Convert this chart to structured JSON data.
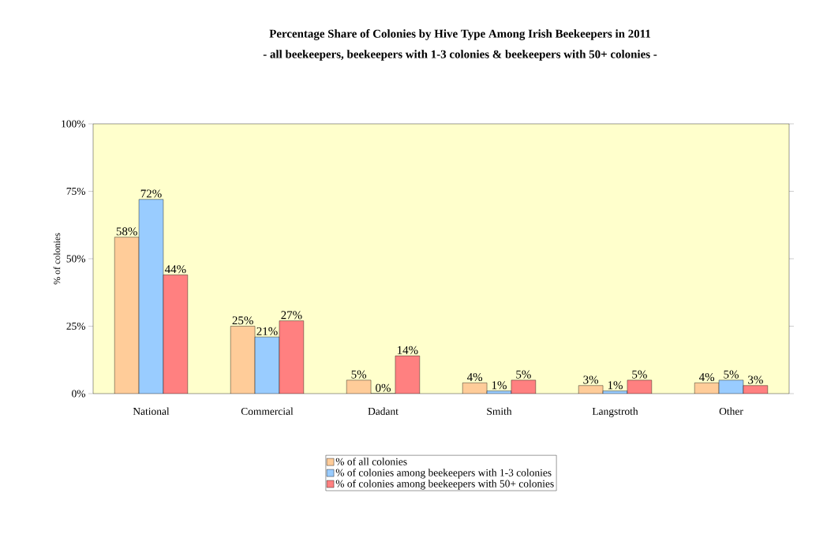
{
  "chart_data": {
    "type": "bar",
    "title": "Percentage Share of Colonies by Hive Type Among Irish Beekeepers in 2011",
    "subtitle": "- all beekeepers, beekeepers with 1-3 colonies & beekeepers with 50+ colonies -",
    "ylabel": "% of colonies",
    "categories": [
      "National",
      "Commercial",
      "Dadant",
      "Smith",
      "Langstroth",
      "Other"
    ],
    "series": [
      {
        "name": "% of all colonies",
        "color": "#ffcc99",
        "values": [
          58,
          25,
          5,
          4,
          3,
          4
        ],
        "value_labels": [
          "58%",
          "25%",
          "5%",
          "4%",
          "3%",
          "4%"
        ]
      },
      {
        "name": "% of colonies among beekeepers with 1-3 colonies",
        "color": "#99ccff",
        "values": [
          72,
          21,
          0,
          1,
          1,
          5
        ],
        "value_labels": [
          "72%",
          "21%",
          "0%",
          "1%",
          "1%",
          "5%"
        ]
      },
      {
        "name": "% of colonies among beekeepers with 50+ colonies",
        "color": "#ff8080",
        "values": [
          44,
          27,
          14,
          5,
          5,
          3
        ],
        "value_labels": [
          "44%",
          "27%",
          "14%",
          "5%",
          "5%",
          "3%"
        ]
      }
    ],
    "ylim": [
      0,
      100
    ],
    "yticks": [
      {
        "value": 0,
        "label": "0%"
      },
      {
        "value": 25,
        "label": "25%"
      },
      {
        "value": 50,
        "label": "50%"
      },
      {
        "value": 75,
        "label": "75%"
      },
      {
        "value": 100,
        "label": "100%"
      }
    ],
    "legend": "bottom"
  }
}
